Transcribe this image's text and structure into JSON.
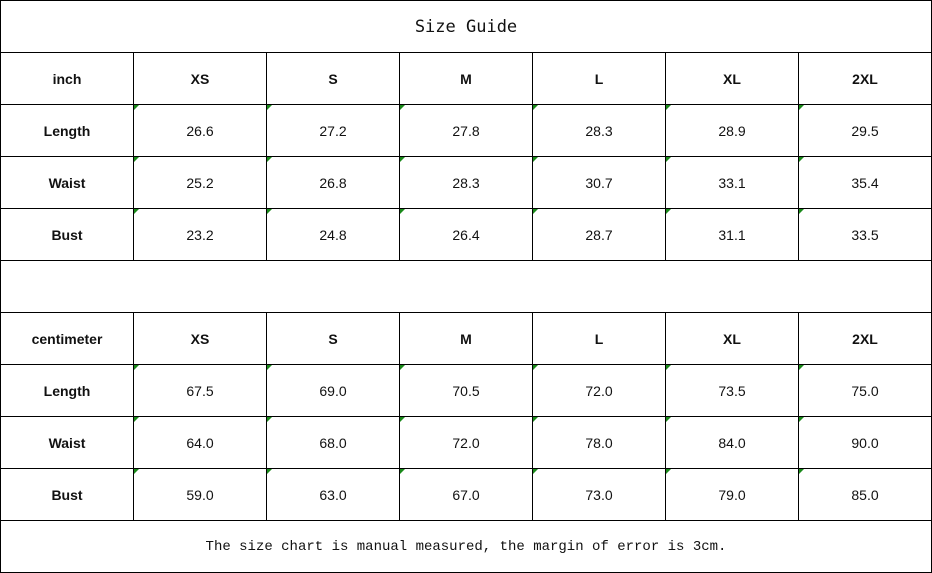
{
  "title": "Size Guide",
  "note": "The size chart is manual measured, the margin of error is 3cm.",
  "indicator_color": "#1a8a1a",
  "tables": [
    {
      "unit": "inch",
      "sizes": [
        "XS",
        "S",
        "M",
        "L",
        "XL",
        "2XL"
      ],
      "rows": [
        {
          "label": "Length",
          "values": [
            "26.6",
            "27.2",
            "27.8",
            "28.3",
            "28.9",
            "29.5"
          ]
        },
        {
          "label": "Waist",
          "values": [
            "25.2",
            "26.8",
            "28.3",
            "30.7",
            "33.1",
            "35.4"
          ]
        },
        {
          "label": "Bust",
          "values": [
            "23.2",
            "24.8",
            "26.4",
            "28.7",
            "31.1",
            "33.5"
          ]
        }
      ]
    },
    {
      "unit": "centimeter",
      "sizes": [
        "XS",
        "S",
        "M",
        "L",
        "XL",
        "2XL"
      ],
      "rows": [
        {
          "label": "Length",
          "values": [
            "67.5",
            "69.0",
            "70.5",
            "72.0",
            "73.5",
            "75.0"
          ]
        },
        {
          "label": "Waist",
          "values": [
            "64.0",
            "68.0",
            "72.0",
            "78.0",
            "84.0",
            "90.0"
          ]
        },
        {
          "label": "Bust",
          "values": [
            "59.0",
            "63.0",
            "67.0",
            "73.0",
            "79.0",
            "85.0"
          ]
        }
      ]
    }
  ]
}
